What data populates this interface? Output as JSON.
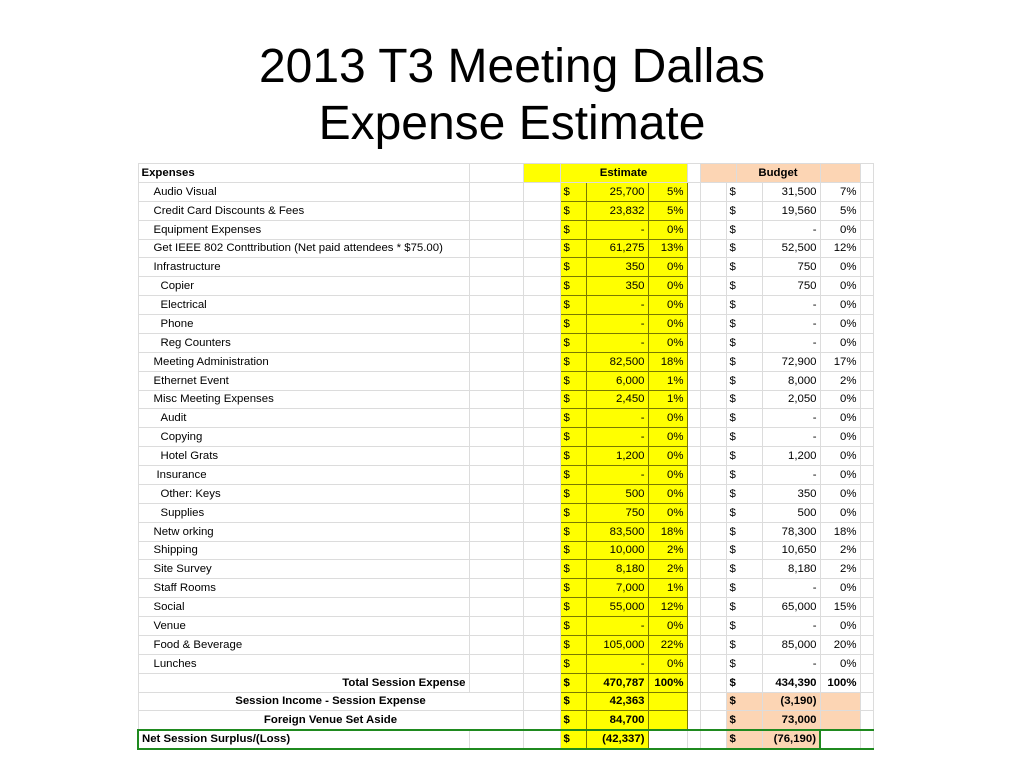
{
  "title": {
    "line1": "2013 T3 Meeting Dallas",
    "line2": "Expense Estimate"
  },
  "colors": {
    "estimate": "#ffff00",
    "budget": "#fcd5b4",
    "net_border": "#1f8a1f"
  },
  "header": {
    "label": "Expenses",
    "estimate": "Estimate",
    "budget": "Budget"
  },
  "rows": [
    {
      "label": "Audio Visual",
      "indent": 1,
      "est_cur": "$",
      "est": "25,700",
      "est_pct": "5%",
      "bud_cur": "$",
      "bud": "31,500",
      "bud_pct": "7%"
    },
    {
      "label": "Credit Card Discounts & Fees",
      "indent": 1,
      "est_cur": "$",
      "est": "23,832",
      "est_pct": "5%",
      "bud_cur": "$",
      "bud": "19,560",
      "bud_pct": "5%"
    },
    {
      "label": "Equipment Expenses",
      "indent": 1,
      "est_cur": "$",
      "est": "-",
      "est_pct": "0%",
      "bud_cur": "$",
      "bud": "-",
      "bud_pct": "0%"
    },
    {
      "label": "Get IEEE 802 Conttribution  (Net paid attendees * $75.00)",
      "indent": 1,
      "est_cur": "$",
      "est": "61,275",
      "est_pct": "13%",
      "bud_cur": "$",
      "bud": "52,500",
      "bud_pct": "12%"
    },
    {
      "label": "Infrastructure",
      "indent": 1,
      "est_cur": "$",
      "est": "350",
      "est_pct": "0%",
      "bud_cur": "$",
      "bud": "750",
      "bud_pct": "0%"
    },
    {
      "label": "Copier",
      "indent": 2,
      "est_cur": "$",
      "est": "350",
      "est_pct": "0%",
      "bud_cur": "$",
      "bud": "750",
      "bud_pct": "0%"
    },
    {
      "label": "Electrical",
      "indent": 2,
      "est_cur": "$",
      "est": "-",
      "est_pct": "0%",
      "bud_cur": "$",
      "bud": "-",
      "bud_pct": "0%"
    },
    {
      "label": "Phone",
      "indent": 2,
      "est_cur": "$",
      "est": "-",
      "est_pct": "0%",
      "bud_cur": "$",
      "bud": "-",
      "bud_pct": "0%"
    },
    {
      "label": "Reg Counters",
      "indent": 2,
      "est_cur": "$",
      "est": "-",
      "est_pct": "0%",
      "bud_cur": "$",
      "bud": "-",
      "bud_pct": "0%"
    },
    {
      "label": "Meeting Administration",
      "indent": 1,
      "est_cur": "$",
      "est": "82,500",
      "est_pct": "18%",
      "bud_cur": "$",
      "bud": "72,900",
      "bud_pct": "17%"
    },
    {
      "label": "Ethernet Event",
      "indent": 1,
      "est_cur": "$",
      "est": "6,000",
      "est_pct": "1%",
      "bud_cur": "$",
      "bud": "8,000",
      "bud_pct": "2%"
    },
    {
      "label": "Misc Meeting Expenses",
      "indent": 1,
      "est_cur": "$",
      "est": "2,450",
      "est_pct": "1%",
      "bud_cur": "$",
      "bud": "2,050",
      "bud_pct": "0%"
    },
    {
      "label": "Audit",
      "indent": 2,
      "est_cur": "$",
      "est": "-",
      "est_pct": "0%",
      "bud_cur": "$",
      "bud": "-",
      "bud_pct": "0%"
    },
    {
      "label": "Copying",
      "indent": 2,
      "est_cur": "$",
      "est": "-",
      "est_pct": "0%",
      "bud_cur": "$",
      "bud": "-",
      "bud_pct": "0%"
    },
    {
      "label": "Hotel Grats",
      "indent": 2,
      "est_cur": "$",
      "est": "1,200",
      "est_pct": "0%",
      "bud_cur": "$",
      "bud": "1,200",
      "bud_pct": "0%"
    },
    {
      "label": "Insurance",
      "indent": 3,
      "est_cur": "$",
      "est": "-",
      "est_pct": "0%",
      "bud_cur": "$",
      "bud": "-",
      "bud_pct": "0%"
    },
    {
      "label": "Other: Keys",
      "indent": 2,
      "est_cur": "$",
      "est": "500",
      "est_pct": "0%",
      "bud_cur": "$",
      "bud": "350",
      "bud_pct": "0%"
    },
    {
      "label": "Supplies",
      "indent": 2,
      "est_cur": "$",
      "est": "750",
      "est_pct": "0%",
      "bud_cur": "$",
      "bud": "500",
      "bud_pct": "0%"
    },
    {
      "label": "Netw orking",
      "indent": 1,
      "est_cur": "$",
      "est": "83,500",
      "est_pct": "18%",
      "bud_cur": "$",
      "bud": "78,300",
      "bud_pct": "18%"
    },
    {
      "label": "Shipping",
      "indent": 1,
      "est_cur": "$",
      "est": "10,000",
      "est_pct": "2%",
      "bud_cur": "$",
      "bud": "10,650",
      "bud_pct": "2%"
    },
    {
      "label": "Site Survey",
      "indent": 1,
      "est_cur": "$",
      "est": "8,180",
      "est_pct": "2%",
      "bud_cur": "$",
      "bud": "8,180",
      "bud_pct": "2%"
    },
    {
      "label": "Staff Rooms",
      "indent": 1,
      "est_cur": "$",
      "est": "7,000",
      "est_pct": "1%",
      "bud_cur": "$",
      "bud": "-",
      "bud_pct": "0%"
    },
    {
      "label": "Social",
      "indent": 1,
      "est_cur": "$",
      "est": "55,000",
      "est_pct": "12%",
      "bud_cur": "$",
      "bud": "65,000",
      "bud_pct": "15%"
    },
    {
      "label": "Venue",
      "indent": 1,
      "est_cur": "$",
      "est": "-",
      "est_pct": "0%",
      "bud_cur": "$",
      "bud": "-",
      "bud_pct": "0%"
    },
    {
      "label": "Food &  Beverage",
      "indent": 1,
      "est_cur": "$",
      "est": "105,000",
      "est_pct": "22%",
      "bud_cur": "$",
      "bud": "85,000",
      "bud_pct": "20%"
    },
    {
      "label": "Lunches",
      "indent": 1,
      "est_cur": "$",
      "est": "-",
      "est_pct": "0%",
      "bud_cur": "$",
      "bud": "-",
      "bud_pct": "0%"
    }
  ],
  "total": {
    "label": "Total Session Expense",
    "est_cur": "$",
    "est": "470,787",
    "est_pct": "100%",
    "bud_cur": "$",
    "bud": "434,390",
    "bud_pct": "100%"
  },
  "income": {
    "label": "Session Income - Session Expense",
    "est_cur": "$",
    "est": "42,363",
    "bud_cur": "$",
    "bud": "(3,190)"
  },
  "foreign": {
    "label": "Foreign Venue Set Aside",
    "est_cur": "$",
    "est": "84,700",
    "bud_cur": "$",
    "bud": "73,000"
  },
  "net": {
    "label": "Net Session Surplus/(Loss)",
    "est_cur": "$",
    "est": "(42,337)",
    "bud_cur": "$",
    "bud": "(76,190)"
  }
}
